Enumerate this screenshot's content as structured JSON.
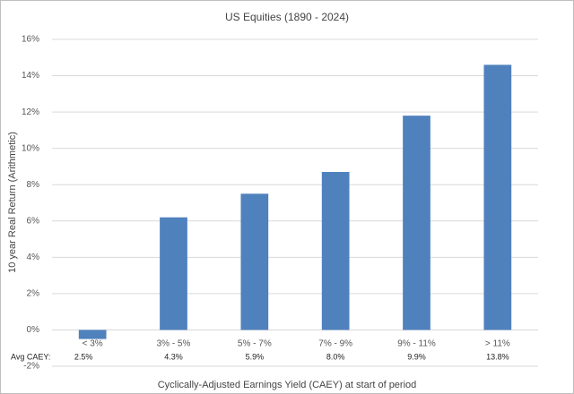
{
  "chart_data": {
    "type": "bar",
    "title": "US Equities (1890 - 2024)",
    "x_label": "Cyclically-Adjusted Earnings Yield (CAEY) at start of period",
    "y_label": "10 year Real Return (Arithmetic)",
    "categories": [
      "< 3%",
      "3% - 5%",
      "5% - 7%",
      "7% - 9%",
      "9% - 11%",
      "> 11%"
    ],
    "values": [
      -0.5,
      6.2,
      7.5,
      8.7,
      11.8,
      14.6
    ],
    "color": "#4f81bd",
    "avg_caey_label": "Avg CAEY:",
    "avg_caey": [
      "2.5%",
      "4.3%",
      "5.9%",
      "8.0%",
      "9.9%",
      "13.8%"
    ],
    "ylim": [
      -2,
      16
    ],
    "yticks": [
      {
        "value": -2,
        "label": "-2%"
      },
      {
        "value": 0,
        "label": "0%"
      },
      {
        "value": 2,
        "label": "2%"
      },
      {
        "value": 4,
        "label": "4%"
      },
      {
        "value": 6,
        "label": "6%"
      },
      {
        "value": 8,
        "label": "8%"
      },
      {
        "value": 10,
        "label": "10%"
      },
      {
        "value": 12,
        "label": "12%"
      },
      {
        "value": 14,
        "label": "14%"
      },
      {
        "value": 16,
        "label": "16%"
      }
    ],
    "grid": true
  }
}
